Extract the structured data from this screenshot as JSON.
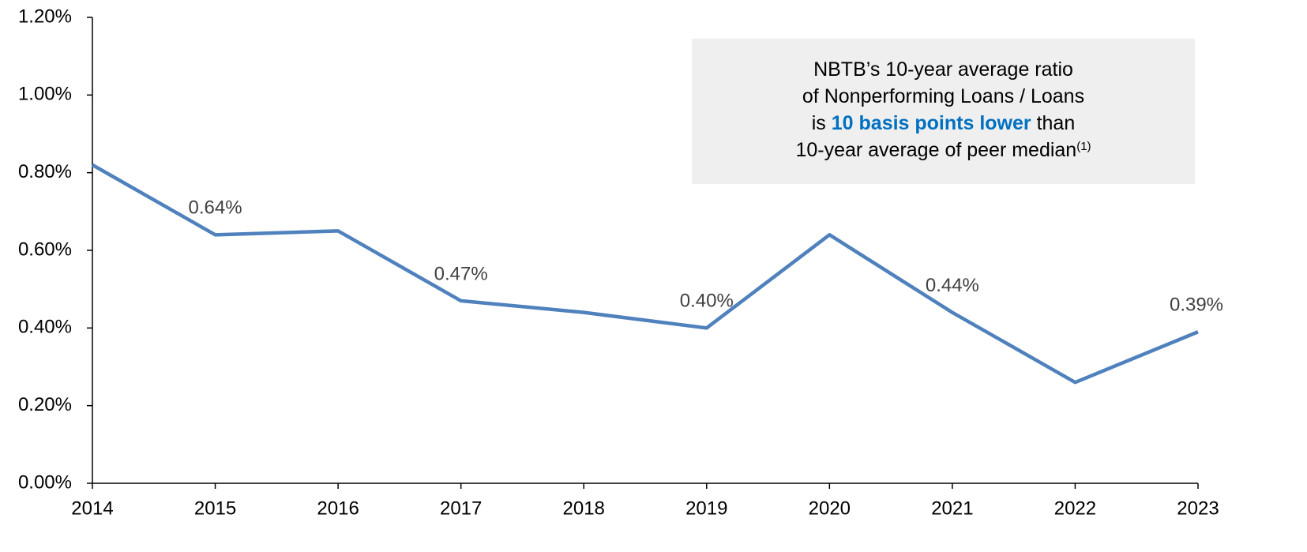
{
  "chart_data": {
    "type": "line",
    "categories": [
      "2014",
      "2015",
      "2016",
      "2017",
      "2018",
      "2019",
      "2020",
      "2021",
      "2022",
      "2023"
    ],
    "series": [
      {
        "color": "#4f81bd",
        "values": [
          0.82,
          0.64,
          0.65,
          0.47,
          0.44,
          0.4,
          0.64,
          0.44,
          0.26,
          0.39
        ],
        "value_labels": [
          null,
          "0.64%",
          null,
          "0.47%",
          null,
          "0.40%",
          null,
          "0.44%",
          null,
          "0.39%"
        ]
      }
    ],
    "ylim": [
      0,
      1.2
    ],
    "yticks": [
      {
        "value": 0,
        "label": "0.00%"
      },
      {
        "value": 0.2,
        "label": "0.20%"
      },
      {
        "value": 0.4,
        "label": "0.40%"
      },
      {
        "value": 0.6,
        "label": "0.60%"
      },
      {
        "value": 0.8,
        "label": "0.80%"
      },
      {
        "value": 1.0,
        "label": "1.00%"
      },
      {
        "value": 1.2,
        "label": "1.20%"
      }
    ],
    "grid": false,
    "annotation": [
      "NBTB’s 10-year average ratio",
      "of Nonperforming Loans / Loans",
      [
        "is",
        "10 basis points lower",
        "than"
      ],
      [
        "10-year average of peer median",
        "(1)"
      ]
    ]
  }
}
